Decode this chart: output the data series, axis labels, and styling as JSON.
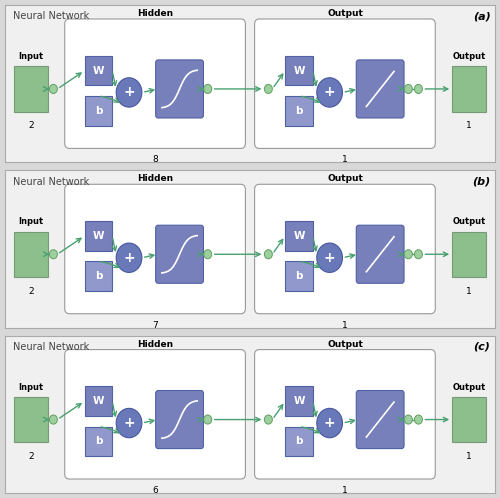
{
  "panels": [
    {
      "label": "(a)",
      "hidden_num": "8",
      "output_num": "1"
    },
    {
      "label": "(b)",
      "hidden_num": "7",
      "output_num": "1"
    },
    {
      "label": "(c)",
      "hidden_num": "6",
      "output_num": "1"
    }
  ],
  "input_num": "2",
  "output_label": "Output",
  "input_label": "Input",
  "title": "Neural Network",
  "hidden_label": "Hidden",
  "output_section_label": "Output",
  "fig_bg": "#d8d8d8",
  "panel_bg": "#f0f0f0",
  "green_box": "#8dbf8d",
  "green_circle": "#9ecf9e",
  "blue_box_dark": "#7880bc",
  "blue_box_light": "#9098cc",
  "sum_circle_color": "#6878b8",
  "arrow_color": "#48a070",
  "border_color": "#aaaaaa",
  "group_box_bg": "#ffffff",
  "title_color": "#444444"
}
